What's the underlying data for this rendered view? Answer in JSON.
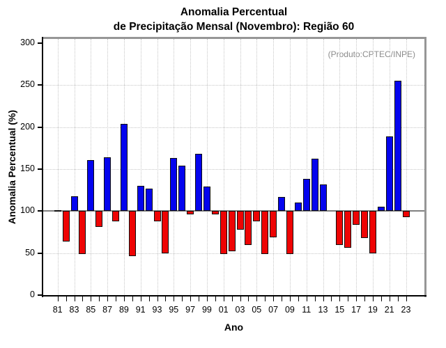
{
  "page": {
    "title_line1": "Anomalia Percentual",
    "title_line2": "de Precipitação Mensal (Novembro): Região 60",
    "annotation": "(Produto:CPTEC/INPE)"
  },
  "chart_data": {
    "type": "bar",
    "title": "Anomalia Percentual de Precipitação Mensal (Novembro): Região 60",
    "xlabel": "Ano",
    "ylabel": "Anomalia Percentual (%)",
    "ylim": [
      0,
      300
    ],
    "yticks": [
      0,
      50,
      100,
      150,
      200,
      250,
      300
    ],
    "x_tick_labels": [
      "81",
      "83",
      "85",
      "87",
      "89",
      "91",
      "93",
      "95",
      "97",
      "99",
      "01",
      "03",
      "05",
      "07",
      "09",
      "11",
      "13",
      "15",
      "17",
      "19",
      "21",
      "23"
    ],
    "grid": "dotted",
    "legend_position": "none",
    "baseline": 100,
    "colors": {
      "above_baseline": "#0404ee",
      "below_baseline": "#ee0404",
      "baseline_line": "#808080",
      "frame_gray": "#969696",
      "annotation_gray": "#8c8c8c"
    },
    "categories": [
      "81",
      "82",
      "83",
      "84",
      "85",
      "86",
      "87",
      "88",
      "89",
      "90",
      "91",
      "92",
      "93",
      "94",
      "95",
      "96",
      "97",
      "98",
      "99",
      "00",
      "01",
      "02",
      "03",
      "04",
      "05",
      "06",
      "07",
      "08",
      "09",
      "10",
      "11",
      "12",
      "13",
      "14",
      "15",
      "16",
      "17",
      "18",
      "19",
      "20",
      "21",
      "22",
      "23"
    ],
    "values": [
      101,
      64,
      118,
      49,
      161,
      81,
      164,
      88,
      204,
      46,
      130,
      127,
      88,
      50,
      163,
      154,
      96,
      168,
      129,
      96,
      49,
      52,
      78,
      60,
      88,
      49,
      69,
      117,
      49,
      110,
      138,
      162,
      132,
      100,
      60,
      56,
      84,
      68,
      50,
      105,
      189,
      255,
      93
    ]
  }
}
